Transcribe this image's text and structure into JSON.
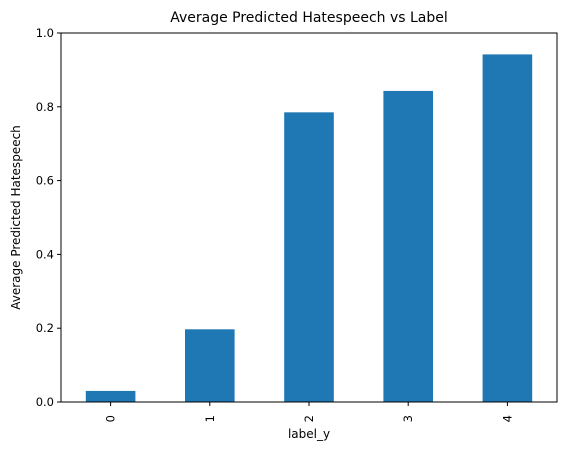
{
  "chart_data": {
    "type": "bar",
    "title": "Average Predicted Hatespeech vs Label",
    "xlabel": "label_y",
    "ylabel": "Average Predicted Hatespeech",
    "categories": [
      "0",
      "1",
      "2",
      "3",
      "4"
    ],
    "values": [
      0.03,
      0.197,
      0.785,
      0.843,
      0.942
    ],
    "ylim": [
      0,
      1.0
    ],
    "yticks": [
      "0.0",
      "0.2",
      "0.4",
      "0.6",
      "0.8",
      "1.0"
    ],
    "bar_color": "#1f77b4",
    "grid": false,
    "legend": "none"
  }
}
